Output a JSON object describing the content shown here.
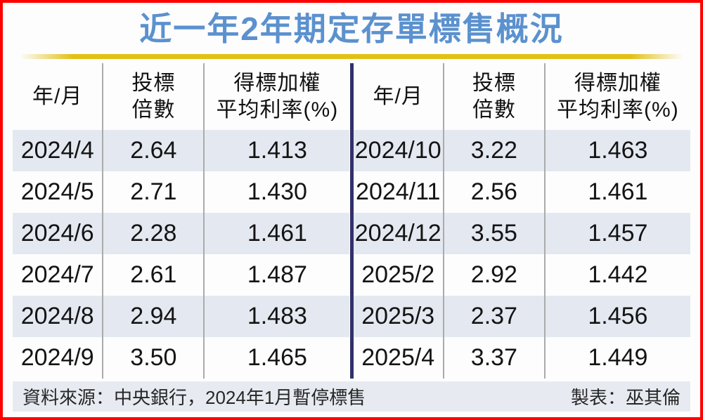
{
  "page": {
    "title": "近一年2年期定存單標售概況",
    "colors": {
      "border_red": "#FF0000",
      "title_blue": "#5B91CE",
      "accent_gold": "#E2C013",
      "divider_navy": "#32316B",
      "row_stripe": "#E4E9F1",
      "footer_bg": "#E7EBF1"
    }
  },
  "table": {
    "headers": [
      "年/月",
      "投標\n倍數",
      "得標加權\n平均利率(%)"
    ],
    "left_rows": [
      [
        "2024/4",
        "2.64",
        "1.413"
      ],
      [
        "2024/5",
        "2.71",
        "1.430"
      ],
      [
        "2024/6",
        "2.28",
        "1.461"
      ],
      [
        "2024/7",
        "2.61",
        "1.487"
      ],
      [
        "2024/8",
        "2.94",
        "1.483"
      ],
      [
        "2024/9",
        "3.50",
        "1.465"
      ]
    ],
    "right_rows": [
      [
        "2024/10",
        "3.22",
        "1.463"
      ],
      [
        "2024/11",
        "2.56",
        "1.461"
      ],
      [
        "2024/12",
        "3.55",
        "1.457"
      ],
      [
        "2025/2",
        "2.92",
        "1.442"
      ],
      [
        "2025/3",
        "2.37",
        "1.456"
      ],
      [
        "2025/4",
        "3.37",
        "1.449"
      ]
    ]
  },
  "footer": {
    "source": "資料來源：中央銀行，2024年1月暫停標售",
    "credit": "製表：巫其倫"
  },
  "chart_data": {
    "type": "table",
    "title": "近一年2年期定存單標售概況",
    "columns": [
      "年/月",
      "投標倍數",
      "得標加權平均利率(%)"
    ],
    "rows": [
      [
        "2024/4",
        2.64,
        1.413
      ],
      [
        "2024/5",
        2.71,
        1.43
      ],
      [
        "2024/6",
        2.28,
        1.461
      ],
      [
        "2024/7",
        2.61,
        1.487
      ],
      [
        "2024/8",
        2.94,
        1.483
      ],
      [
        "2024/9",
        3.5,
        1.465
      ],
      [
        "2024/10",
        3.22,
        1.463
      ],
      [
        "2024/11",
        2.56,
        1.461
      ],
      [
        "2024/12",
        3.55,
        1.457
      ],
      [
        "2025/2",
        2.92,
        1.442
      ],
      [
        "2025/3",
        2.37,
        1.456
      ],
      [
        "2025/4",
        3.37,
        1.449
      ]
    ],
    "layout": "split two-panel table: rows 2024/4-2024/9 in left panel, 2024/10-2025/4 in right panel",
    "notes": "資料來源：中央銀行，2024年1月暫停標售",
    "credit": "製表：巫其倫"
  }
}
